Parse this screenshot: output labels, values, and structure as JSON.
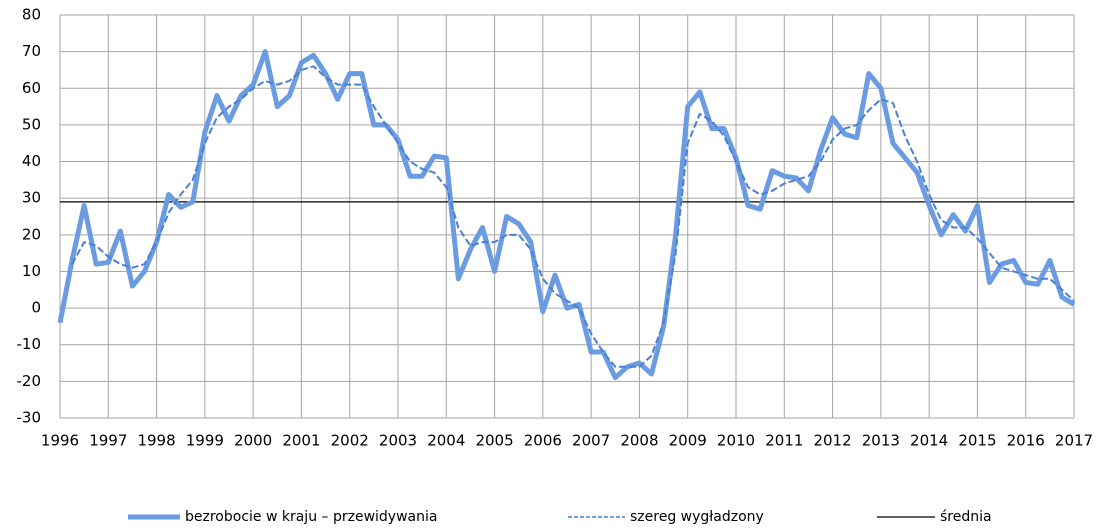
{
  "chart_data": {
    "type": "line",
    "x": [
      1996,
      1996.25,
      1996.5,
      1996.75,
      1997,
      1997.25,
      1997.5,
      1997.75,
      1998,
      1998.25,
      1998.5,
      1998.75,
      1999,
      1999.25,
      1999.5,
      1999.75,
      2000,
      2000.25,
      2000.5,
      2000.75,
      2001,
      2001.25,
      2001.5,
      2001.75,
      2002,
      2002.25,
      2002.5,
      2002.75,
      2003,
      2003.25,
      2003.5,
      2003.75,
      2004,
      2004.25,
      2004.5,
      2004.75,
      2005,
      2005.25,
      2005.5,
      2005.75,
      2006,
      2006.25,
      2006.5,
      2006.75,
      2007,
      2007.25,
      2007.5,
      2007.75,
      2008,
      2008.25,
      2008.5,
      2008.75,
      2009,
      2009.25,
      2009.5,
      2009.75,
      2010,
      2010.25,
      2010.5,
      2010.75,
      2011,
      2011.25,
      2011.5,
      2011.75,
      2012,
      2012.25,
      2012.5,
      2012.75,
      2013,
      2013.25,
      2013.5,
      2013.75,
      2014,
      2014.25,
      2014.5,
      2014.75,
      2015,
      2015.25,
      2015.5,
      2015.75,
      2016,
      2016.25,
      2016.5,
      2016.75,
      2017
    ],
    "series": [
      {
        "name": "bezrobocie w kraju – przewidywania",
        "color": "#6b9be0",
        "style": "solid",
        "values": [
          -4,
          13,
          28,
          12,
          12.5,
          21,
          6,
          10,
          18,
          31,
          27.5,
          29,
          48,
          58,
          51,
          58,
          61,
          70,
          55,
          58,
          67,
          69,
          64,
          57,
          64,
          64,
          50,
          50,
          46,
          36,
          36,
          41.5,
          41,
          8,
          16,
          22,
          10,
          25,
          23,
          18,
          -1,
          9,
          0,
          1,
          -12,
          -12,
          -19,
          -16,
          -15,
          -18,
          -5,
          20,
          55,
          59,
          49,
          49,
          41,
          28,
          27,
          37.5,
          36,
          35.5,
          32,
          43,
          52,
          47.5,
          46.5,
          64,
          60,
          45,
          41,
          37,
          28,
          20,
          25.5,
          21,
          28,
          7,
          12,
          13,
          7,
          6.5,
          13,
          3,
          1
        ]
      },
      {
        "name": "szereg wygładzony",
        "color": "#4a7fd4",
        "style": "dashed",
        "values": [
          null,
          12,
          18,
          17,
          14,
          12,
          11,
          12,
          18,
          26,
          31,
          35,
          45,
          52,
          55,
          57,
          60,
          62,
          61,
          62,
          65,
          66,
          63,
          61,
          61,
          61,
          55,
          50,
          45,
          40,
          38,
          37,
          33,
          22,
          17,
          18,
          18,
          20,
          20,
          16,
          8,
          4,
          2,
          0,
          -7,
          -12,
          -16,
          -16,
          -16,
          -13,
          -4,
          15,
          45,
          53,
          51,
          47,
          40,
          33,
          31,
          32,
          34,
          35,
          36,
          40,
          46,
          49,
          50,
          54,
          57,
          56,
          47,
          40,
          31,
          24,
          22,
          22,
          19,
          15,
          11,
          10,
          9,
          8,
          8,
          5,
          2
        ]
      }
    ],
    "reference_line": {
      "name": "średnia",
      "value": 29,
      "color": "#000000"
    },
    "xlim": [
      1996,
      2017
    ],
    "xticks": [
      1996,
      1997,
      1998,
      1999,
      2000,
      2001,
      2002,
      2003,
      2004,
      2005,
      2006,
      2007,
      2008,
      2009,
      2010,
      2011,
      2012,
      2013,
      2014,
      2015,
      2016,
      2017
    ],
    "ylim": [
      -30,
      80
    ],
    "yticks": [
      -30,
      -20,
      -10,
      0,
      10,
      20,
      30,
      40,
      50,
      60,
      70,
      80
    ],
    "grid": true
  }
}
